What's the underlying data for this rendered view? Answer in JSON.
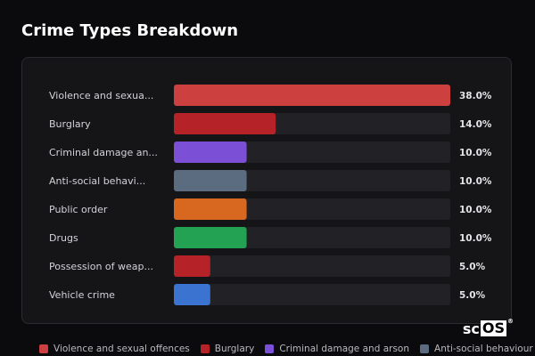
{
  "page": {
    "title": "Crime Types Breakdown"
  },
  "chart_data": {
    "type": "bar",
    "orientation": "horizontal",
    "xlim": [
      0,
      38
    ],
    "categories": [
      "Violence and sexua...",
      "Burglary",
      "Criminal damage an...",
      "Anti-social behavi...",
      "Public order",
      "Drugs",
      "Possession of weap...",
      "Vehicle crime"
    ],
    "values": [
      38.0,
      14.0,
      10.0,
      10.0,
      10.0,
      10.0,
      5.0,
      5.0
    ],
    "value_labels": [
      "38.0%",
      "14.0%",
      "10.0%",
      "10.0%",
      "10.0%",
      "10.0%",
      "5.0%",
      "5.0%"
    ],
    "colors": [
      "#cc4040",
      "#b52328",
      "#7b4fd6",
      "#5b6b80",
      "#d8681f",
      "#23a254",
      "#b52328",
      "#3a73d0"
    ],
    "legend_position": "bottom",
    "legend": [
      {
        "label": "Violence and sexual offences",
        "color": "#cc4040"
      },
      {
        "label": "Burglary",
        "color": "#b52328"
      },
      {
        "label": "Criminal damage and arson",
        "color": "#7b4fd6"
      },
      {
        "label": "Anti-social behaviour",
        "color": "#5b6b80"
      }
    ]
  },
  "logo": {
    "main": "sc",
    "box": "OS",
    "mark": "®"
  }
}
